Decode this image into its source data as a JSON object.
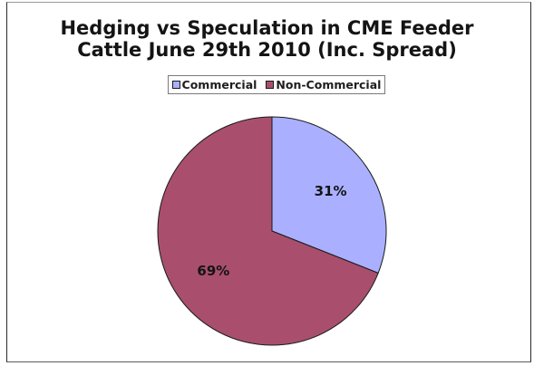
{
  "chart_data": {
    "type": "pie",
    "title": "Hedging vs Speculation in CME Feeder\nCattle June 29th 2010 (Inc. Spread)",
    "legend_position": "top",
    "slices": [
      {
        "name": "Commercial",
        "value": 31,
        "label": "31%",
        "color": "#aab0ff"
      },
      {
        "name": "Non-Commercial",
        "value": 69,
        "label": "69%",
        "color": "#a94f6d"
      }
    ]
  }
}
